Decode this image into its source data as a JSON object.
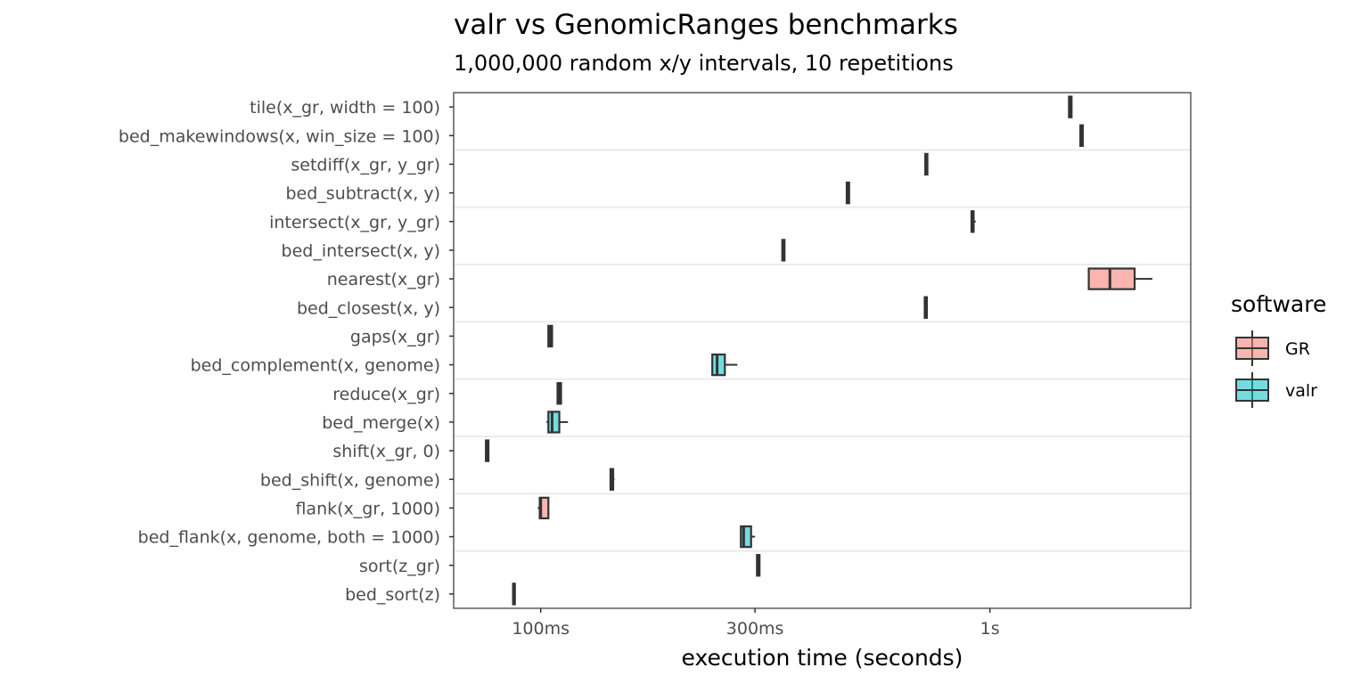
{
  "chart_data": {
    "type": "boxplot",
    "title": "valr vs GenomicRanges benchmarks",
    "subtitle": "1,000,000 random x/y intervals, 10 repetitions",
    "xlabel": "execution time (seconds)",
    "ylabel": "",
    "x_scale": "log10",
    "xlim": [
      0.064,
      2.8
    ],
    "x_ticks": [
      {
        "value": 0.1,
        "label": "100ms"
      },
      {
        "value": 0.3,
        "label": "300ms"
      },
      {
        "value": 1.0,
        "label": "1s"
      }
    ],
    "legend": {
      "title": "software",
      "position": "right",
      "entries": [
        {
          "name": "GR",
          "color": "#F8766D"
        },
        {
          "name": "valr",
          "color": "#00BFC4"
        }
      ]
    },
    "grid": {
      "horizontal_group_lines": true,
      "color": "#ebebeb"
    },
    "categories": [
      {
        "label": "tile(x_gr, width = 100)",
        "software": "GR",
        "stats": [
          1.5,
          1.5,
          1.51,
          1.52,
          1.52
        ]
      },
      {
        "label": "bed_makewindows(x, win_size = 100)",
        "software": "valr",
        "stats": [
          1.59,
          1.59,
          1.6,
          1.61,
          1.61
        ]
      },
      {
        "label": "setdiff(x_gr, y_gr)",
        "software": "GR",
        "stats": [
          0.718,
          0.718,
          0.722,
          0.726,
          0.726
        ]
      },
      {
        "label": "bed_subtract(x, y)",
        "software": "valr",
        "stats": [
          0.48,
          0.48,
          0.483,
          0.486,
          0.486
        ]
      },
      {
        "label": "intersect(x_gr, y_gr)",
        "software": "GR",
        "stats": [
          0.91,
          0.91,
          0.915,
          0.92,
          0.93
        ]
      },
      {
        "label": "bed_intersect(x, y)",
        "software": "valr",
        "stats": [
          0.345,
          0.345,
          0.347,
          0.349,
          0.349
        ]
      },
      {
        "label": "nearest(x_gr)",
        "software": "GR",
        "stats": [
          1.66,
          1.66,
          1.85,
          2.1,
          2.3
        ]
      },
      {
        "label": "bed_closest(x, y)",
        "software": "valr",
        "stats": [
          0.716,
          0.716,
          0.72,
          0.724,
          0.724
        ]
      },
      {
        "label": "gaps(x_gr)",
        "software": "GR",
        "stats": [
          0.104,
          0.104,
          0.105,
          0.106,
          0.106
        ]
      },
      {
        "label": "bed_complement(x, genome)",
        "software": "valr",
        "stats": [
          0.24,
          0.241,
          0.247,
          0.257,
          0.274
        ]
      },
      {
        "label": "reduce(x_gr)",
        "software": "GR",
        "stats": [
          0.109,
          0.109,
          0.11,
          0.111,
          0.111
        ]
      },
      {
        "label": "bed_merge(x)",
        "software": "valr",
        "stats": [
          0.103,
          0.104,
          0.106,
          0.11,
          0.115
        ]
      },
      {
        "label": "shift(x_gr, 0)",
        "software": "GR",
        "stats": [
          0.0755,
          0.0755,
          0.076,
          0.0765,
          0.0765
        ]
      },
      {
        "label": "bed_shift(x, genome)",
        "software": "valr",
        "stats": [
          0.143,
          0.143,
          0.144,
          0.145,
          0.146
        ]
      },
      {
        "label": "flank(x_gr, 1000)",
        "software": "GR",
        "stats": [
          0.0985,
          0.0995,
          0.1,
          0.104,
          0.104
        ]
      },
      {
        "label": "bed_flank(x, genome, both = 1000)",
        "software": "valr",
        "stats": [
          0.278,
          0.279,
          0.283,
          0.294,
          0.3
        ]
      },
      {
        "label": "sort(z_gr)",
        "software": "GR",
        "stats": [
          0.303,
          0.303,
          0.305,
          0.307,
          0.307
        ]
      },
      {
        "label": "bed_sort(z)",
        "software": "valr",
        "stats": [
          0.0868,
          0.0868,
          0.087,
          0.0872,
          0.0872
        ]
      }
    ]
  }
}
